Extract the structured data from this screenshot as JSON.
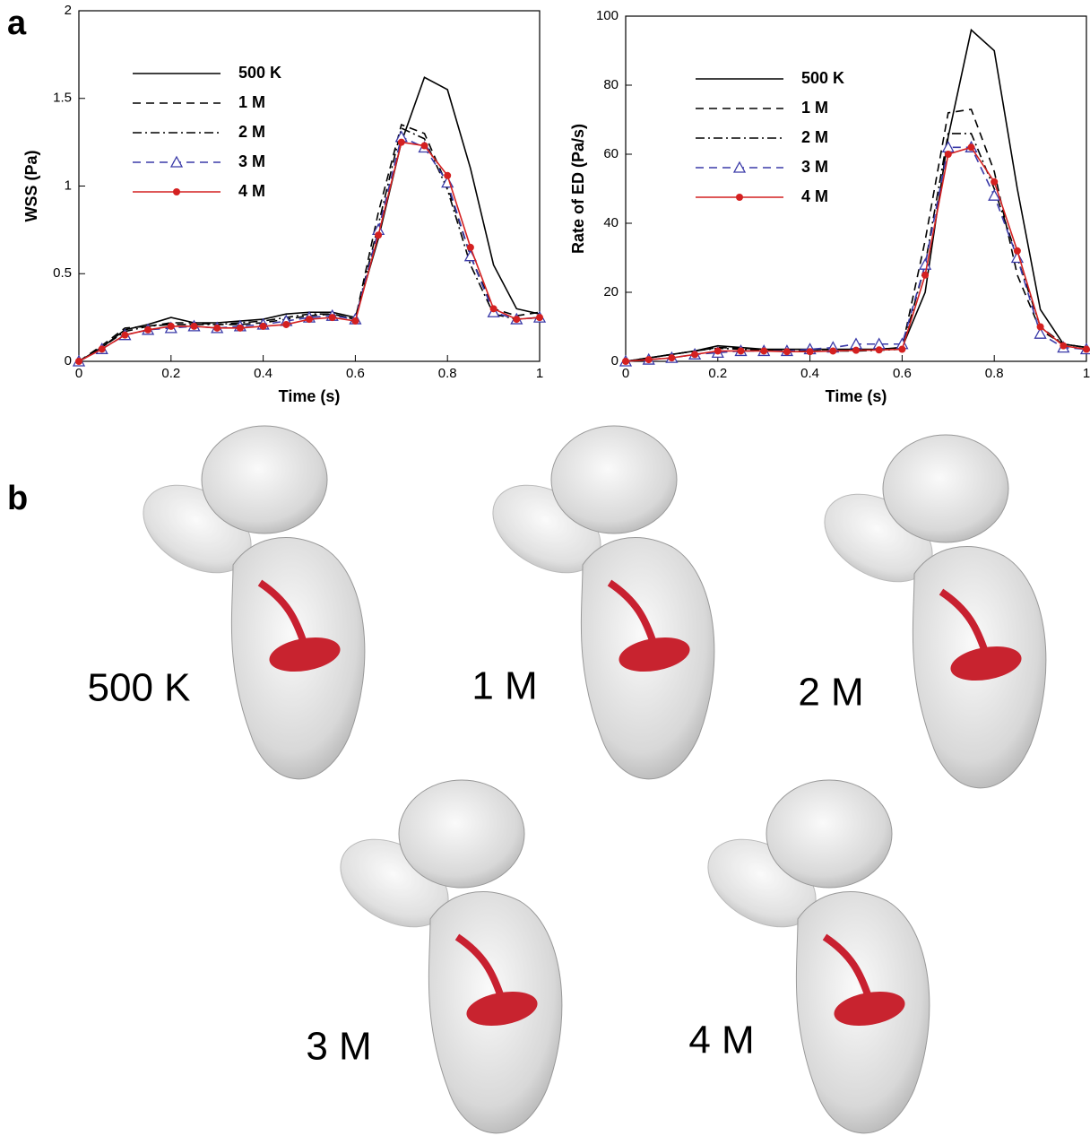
{
  "panels": [
    "a",
    "b"
  ],
  "chart_data": [
    {
      "type": "line",
      "xlabel": "Time (s)",
      "ylabel": "WSS (Pa)",
      "x": [
        0,
        0.05,
        0.1,
        0.15,
        0.2,
        0.25,
        0.3,
        0.35,
        0.4,
        0.45,
        0.5,
        0.55,
        0.6,
        0.65,
        0.7,
        0.75,
        0.8,
        0.85,
        0.9,
        0.95,
        1
      ],
      "xlim": [
        0,
        1
      ],
      "xticks": [
        0,
        0.2,
        0.4,
        0.6,
        0.8,
        1
      ],
      "ylim": [
        0,
        2
      ],
      "yticks": [
        0,
        0.5,
        1,
        1.5,
        2
      ],
      "series": [
        {
          "name": "500 K",
          "color": "#000000",
          "style": "solid",
          "marker": "none",
          "values": [
            0,
            0.08,
            0.18,
            0.21,
            0.25,
            0.22,
            0.22,
            0.23,
            0.24,
            0.27,
            0.28,
            0.28,
            0.25,
            0.7,
            1.25,
            1.62,
            1.55,
            1.1,
            0.55,
            0.3,
            0.27
          ]
        },
        {
          "name": "1 M",
          "color": "#000000",
          "style": "dashed",
          "marker": "none",
          "values": [
            0,
            0.09,
            0.19,
            0.2,
            0.22,
            0.22,
            0.21,
            0.21,
            0.22,
            0.24,
            0.26,
            0.27,
            0.24,
            0.85,
            1.35,
            1.3,
            1.0,
            0.6,
            0.3,
            0.26,
            0.28
          ]
        },
        {
          "name": "2 M",
          "color": "#000000",
          "style": "dashdot",
          "marker": "none",
          "values": [
            0,
            0.08,
            0.17,
            0.2,
            0.21,
            0.21,
            0.21,
            0.22,
            0.23,
            0.25,
            0.27,
            0.27,
            0.24,
            0.78,
            1.33,
            1.27,
            0.98,
            0.55,
            0.27,
            0.24,
            0.25
          ]
        },
        {
          "name": "3 M",
          "color": "#3a3aa8",
          "style": "dashed",
          "marker": "triangle",
          "values": [
            0,
            0.07,
            0.15,
            0.18,
            0.19,
            0.2,
            0.19,
            0.2,
            0.21,
            0.23,
            0.25,
            0.26,
            0.24,
            0.75,
            1.28,
            1.22,
            1.02,
            0.6,
            0.28,
            0.24,
            0.25
          ]
        },
        {
          "name": "4 M",
          "color": "#d42020",
          "style": "solid",
          "marker": "circle",
          "values": [
            0,
            0.07,
            0.15,
            0.18,
            0.2,
            0.2,
            0.19,
            0.19,
            0.2,
            0.21,
            0.24,
            0.25,
            0.23,
            0.72,
            1.25,
            1.23,
            1.06,
            0.65,
            0.3,
            0.24,
            0.25
          ]
        }
      ]
    },
    {
      "type": "line",
      "xlabel": "Time (s)",
      "ylabel": "Rate of ED (Pa/s)",
      "x": [
        0,
        0.05,
        0.1,
        0.15,
        0.2,
        0.25,
        0.3,
        0.35,
        0.4,
        0.45,
        0.5,
        0.55,
        0.6,
        0.65,
        0.7,
        0.75,
        0.8,
        0.85,
        0.9,
        0.95,
        1
      ],
      "xlim": [
        0,
        1
      ],
      "xticks": [
        0,
        0.2,
        0.4,
        0.6,
        0.8,
        1
      ],
      "ylim": [
        0,
        100
      ],
      "yticks": [
        0,
        20,
        40,
        60,
        80,
        100
      ],
      "series": [
        {
          "name": "500 K",
          "color": "#000000",
          "style": "solid",
          "marker": "none",
          "values": [
            0,
            1,
            2,
            3,
            4.5,
            4,
            3.5,
            3.5,
            3.5,
            3.5,
            3.5,
            3.5,
            4,
            20,
            65,
            96,
            90,
            50,
            15,
            5,
            4
          ]
        },
        {
          "name": "1 M",
          "color": "#000000",
          "style": "dashed",
          "marker": "none",
          "values": [
            0,
            1,
            2,
            3,
            4,
            3.8,
            3.5,
            3.2,
            3,
            3,
            3.2,
            3.5,
            4,
            35,
            72,
            73,
            55,
            25,
            9,
            5,
            4
          ]
        },
        {
          "name": "2 M",
          "color": "#000000",
          "style": "dashdot",
          "marker": "none",
          "values": [
            0,
            1,
            2,
            3,
            3.8,
            3.5,
            3.2,
            3,
            3,
            3,
            3,
            3.2,
            3.5,
            28,
            66,
            66,
            50,
            30,
            10,
            5,
            4
          ]
        },
        {
          "name": "3 M",
          "color": "#3a3aa8",
          "style": "dashed",
          "marker": "triangle",
          "values": [
            0,
            0.5,
            1,
            2,
            2.5,
            3,
            3,
            3,
            3.5,
            4,
            5,
            5,
            5,
            28,
            62,
            62,
            48,
            30,
            8,
            4,
            3.5
          ]
        },
        {
          "name": "4 M",
          "color": "#d42020",
          "style": "solid",
          "marker": "circle",
          "values": [
            0,
            0.5,
            1,
            2,
            3,
            3,
            3,
            2.8,
            2.8,
            3,
            3.2,
            3.3,
            3.5,
            25,
            60,
            62,
            52,
            32,
            10,
            4.5,
            3.5
          ]
        }
      ]
    }
  ],
  "renderings": [
    "500 K",
    "1 M",
    "2 M",
    "3 M",
    "4 M"
  ]
}
